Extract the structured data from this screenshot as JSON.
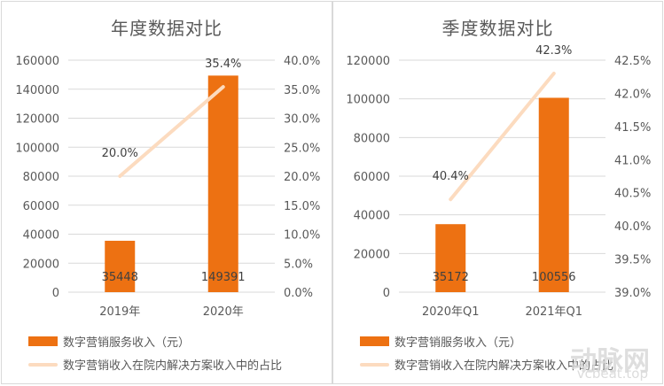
{
  "chart_data": [
    {
      "type": "bar+line",
      "title": "年度数据对比",
      "categories": [
        "2019年",
        "2020年"
      ],
      "series": [
        {
          "name": "数字营销服务收入（元）",
          "type": "bar",
          "axis": "left",
          "values": [
            35448,
            149391
          ],
          "labels": [
            "35448",
            "149391"
          ],
          "color": "#ed7112"
        },
        {
          "name": "数字营销收入在院内解决方案收入中的占比",
          "type": "line",
          "axis": "right",
          "values": [
            20.0,
            35.4
          ],
          "labels": [
            "20.0%",
            "35.4%"
          ],
          "color": "#fcdbbf"
        }
      ],
      "y_left": {
        "ticks": [
          "0",
          "20000",
          "40000",
          "60000",
          "80000",
          "100000",
          "120000",
          "140000",
          "160000"
        ],
        "range": [
          0,
          160000
        ]
      },
      "y_right": {
        "ticks": [
          "0.0%",
          "5.0%",
          "10.0%",
          "15.0%",
          "20.0%",
          "25.0%",
          "30.0%",
          "35.0%",
          "40.0%"
        ],
        "range": [
          0,
          40
        ]
      },
      "grid": true,
      "legend_position": "bottom"
    },
    {
      "type": "bar+line",
      "title": "季度数据对比",
      "categories": [
        "2020年Q1",
        "2021年Q1"
      ],
      "series": [
        {
          "name": "数字营销服务收入（元）",
          "type": "bar",
          "axis": "left",
          "values": [
            35172,
            100556
          ],
          "labels": [
            "35172",
            "100556"
          ],
          "color": "#ed7112"
        },
        {
          "name": "数字营销收入在院内解决方案收入中的占比",
          "type": "line",
          "axis": "right",
          "values": [
            40.4,
            42.3
          ],
          "labels": [
            "40.4%",
            "42.3%"
          ],
          "color": "#fcdbbf"
        }
      ],
      "y_left": {
        "ticks": [
          "0",
          "20000",
          "40000",
          "60000",
          "80000",
          "100000",
          "120000"
        ],
        "range": [
          0,
          120000
        ]
      },
      "y_right": {
        "ticks": [
          "39.0%",
          "39.5%",
          "40.0%",
          "40.5%",
          "41.0%",
          "41.5%",
          "42.0%",
          "42.5%"
        ],
        "range": [
          39.0,
          42.5
        ]
      },
      "grid": true,
      "legend_position": "bottom"
    }
  ],
  "watermark": {
    "brand": "动脉网",
    "site": "vcbeat.top"
  }
}
